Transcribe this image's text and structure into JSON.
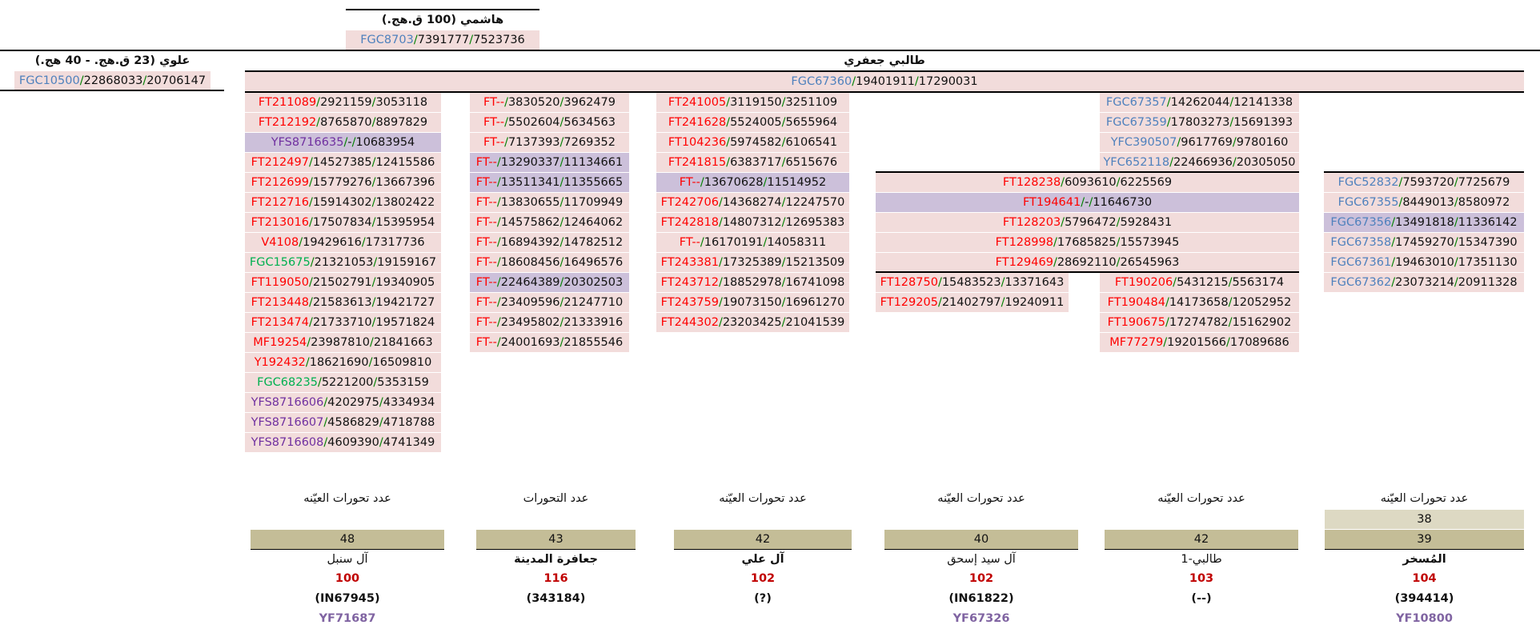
{
  "hashimi": {
    "title": "هاشمي (100 ق.هج.)",
    "code": {
      "p": "FGC8703",
      "a": "7391777",
      "b": "7523736",
      "c": "blue"
    }
  },
  "alawi": {
    "title": "علوي (23 ق.هج. - 40 هج.)",
    "code": {
      "p": "FGC10500",
      "a": "22868033",
      "b": "20706147",
      "c": "blue"
    }
  },
  "jafari": {
    "title": "طالبي جعفري",
    "code": {
      "p": "FGC67360",
      "a": "19401911",
      "b": "17290031",
      "c": "blue"
    }
  },
  "columns": [
    {
      "id": "col1",
      "rows": [
        {
          "p": "FT211089",
          "a": "2921159",
          "b": "3053118",
          "c": "red"
        },
        {
          "p": "FT212192",
          "a": "8765870",
          "b": "8897829",
          "c": "red"
        },
        {
          "p": "YFS8716635",
          "a": "-",
          "b": "10683954",
          "c": "purple",
          "hl": true
        },
        {
          "p": "FT212497",
          "a": "14527385",
          "b": "12415586",
          "c": "red"
        },
        {
          "p": "FT212699",
          "a": "15779276",
          "b": "13667396",
          "c": "red"
        },
        {
          "p": "FT212716",
          "a": "15914302",
          "b": "13802422",
          "c": "red"
        },
        {
          "p": "FT213016",
          "a": "17507834",
          "b": "15395954",
          "c": "red"
        },
        {
          "p": "V4108",
          "a": "19429616",
          "b": "17317736",
          "c": "red"
        },
        {
          "p": "FGC15675",
          "a": "21321053",
          "b": "19159167",
          "c": "green"
        },
        {
          "p": "FT119050",
          "a": "21502791",
          "b": "19340905",
          "c": "red"
        },
        {
          "p": "FT213448",
          "a": "21583613",
          "b": "19421727",
          "c": "red"
        },
        {
          "p": "FT213474",
          "a": "21733710",
          "b": "19571824",
          "c": "red"
        },
        {
          "p": "MF19254",
          "a": "23987810",
          "b": "21841663",
          "c": "red"
        },
        {
          "p": "Y192432",
          "a": "18621690",
          "b": "16509810",
          "c": "red"
        },
        {
          "p": "FGC68235",
          "a": "5221200",
          "b": "5353159",
          "c": "green"
        },
        {
          "p": "YFS8716606",
          "a": "4202975",
          "b": "4334934",
          "c": "purple"
        },
        {
          "p": "YFS8716607",
          "a": "4586829",
          "b": "4718788",
          "c": "purple"
        },
        {
          "p": "YFS8716608",
          "a": "4609390",
          "b": "4741349",
          "c": "purple"
        }
      ]
    },
    {
      "id": "col2",
      "rows": [
        {
          "p": "FT--",
          "a": "3830520",
          "b": "3962479",
          "c": "red"
        },
        {
          "p": "FT--",
          "a": "5502604",
          "b": "5634563",
          "c": "red"
        },
        {
          "p": "FT--",
          "a": "7137393",
          "b": "7269352",
          "c": "red"
        },
        {
          "p": "FT--",
          "a": "13290337",
          "b": "11134661",
          "c": "red",
          "hl": true
        },
        {
          "p": "FT--",
          "a": "13511341",
          "b": "11355665",
          "c": "red",
          "hl": true
        },
        {
          "p": "FT--",
          "a": "13830655",
          "b": "11709949",
          "c": "red"
        },
        {
          "p": "FT--",
          "a": "14575862",
          "b": "12464062",
          "c": "red"
        },
        {
          "p": "FT--",
          "a": "16894392",
          "b": "14782512",
          "c": "red"
        },
        {
          "p": "FT--",
          "a": "18608456",
          "b": "16496576",
          "c": "red"
        },
        {
          "p": "FT--",
          "a": "22464389",
          "b": "20302503",
          "c": "red",
          "hl": true
        },
        {
          "p": "FT--",
          "a": "23409596",
          "b": "21247710",
          "c": "red"
        },
        {
          "p": "FT--",
          "a": "23495802",
          "b": "21333916",
          "c": "red"
        },
        {
          "p": "FT--",
          "a": "24001693",
          "b": "21855546",
          "c": "red"
        }
      ]
    },
    {
      "id": "col3",
      "rows": [
        {
          "p": "FT241005",
          "a": "3119150",
          "b": "3251109",
          "c": "red"
        },
        {
          "p": "FT241628",
          "a": "5524005",
          "b": "5655964",
          "c": "red"
        },
        {
          "p": "FT104236",
          "a": "5974582",
          "b": "6106541",
          "c": "red"
        },
        {
          "p": "FT241815",
          "a": "6383717",
          "b": "6515676",
          "c": "red"
        },
        {
          "p": "FT--",
          "a": "13670628",
          "b": "11514952",
          "c": "red",
          "hl": true
        },
        {
          "p": "FT242706",
          "a": "14368274",
          "b": "12247570",
          "c": "red"
        },
        {
          "p": "FT242818",
          "a": "14807312",
          "b": "12695383",
          "c": "red"
        },
        {
          "p": "FT--",
          "a": "16170191",
          "b": "14058311",
          "c": "red"
        },
        {
          "p": "FT243381",
          "a": "17325389",
          "b": "15213509",
          "c": "red"
        },
        {
          "p": "FT243712",
          "a": "18852978",
          "b": "16741098",
          "c": "red"
        },
        {
          "p": "FT243759",
          "a": "19073150",
          "b": "16961270",
          "c": "red"
        },
        {
          "p": "FT244302",
          "a": "23203425",
          "b": "21041539",
          "c": "red"
        }
      ]
    },
    {
      "id": "col5top",
      "rows": [
        {
          "p": "FGC67357",
          "a": "14262044",
          "b": "12141338",
          "c": "blue"
        },
        {
          "p": "FGC67359",
          "a": "17803273",
          "b": "15691393",
          "c": "blue"
        },
        {
          "p": "YFC390507",
          "a": "9617769",
          "b": "9780160",
          "c": "blue"
        },
        {
          "p": "YFC652118",
          "a": "22466936",
          "b": "20305050",
          "c": "blue"
        }
      ]
    },
    {
      "id": "col45shared",
      "rows": [
        {
          "p": "FT128238",
          "a": "6093610",
          "b": "6225569",
          "c": "red"
        },
        {
          "p": "FT194641",
          "a": "-",
          "b": "11646730",
          "c": "red",
          "hl": true
        },
        {
          "p": "FT128203",
          "a": "5796472",
          "b": "5928431",
          "c": "red"
        },
        {
          "p": "FT128998",
          "a": "17685825",
          "b": "15573945",
          "c": "red"
        },
        {
          "p": "FT129469",
          "a": "28692110",
          "b": "26545963",
          "c": "red"
        }
      ]
    },
    {
      "id": "col4",
      "rows": [
        {
          "p": "FT128750",
          "a": "15483523",
          "b": "13371643",
          "c": "red"
        },
        {
          "p": "FT129205",
          "a": "21402797",
          "b": "19240911",
          "c": "red"
        }
      ]
    },
    {
      "id": "col5",
      "rows": [
        {
          "p": "FT190206",
          "a": "5431215",
          "b": "5563174",
          "c": "red"
        },
        {
          "p": "FT190484",
          "a": "14173658",
          "b": "12052952",
          "c": "red"
        },
        {
          "p": "FT190675",
          "a": "17274782",
          "b": "15162902",
          "c": "red"
        },
        {
          "p": "MF77279",
          "a": "19201566",
          "b": "17089686",
          "c": "red"
        }
      ]
    },
    {
      "id": "col6",
      "rows": [
        {
          "p": "FGC52832",
          "a": "7593720",
          "b": "7725679",
          "c": "blue"
        },
        {
          "p": "FGC67355",
          "a": "8449013",
          "b": "8580972",
          "c": "blue"
        },
        {
          "p": "FGC67356",
          "a": "13491818",
          "b": "11336142",
          "c": "blue",
          "hl": true
        },
        {
          "p": "FGC67358",
          "a": "17459270",
          "b": "15347390",
          "c": "blue"
        },
        {
          "p": "FGC67361",
          "a": "19463010",
          "b": "17351130",
          "c": "blue"
        },
        {
          "p": "FGC67362",
          "a": "23073214",
          "b": "20911328",
          "c": "blue"
        }
      ]
    }
  ],
  "summary": [
    {
      "heading": "عدد تحورات العيّنه",
      "extra": "",
      "count": "48",
      "name": "آل سنبل",
      "name_bold": false,
      "num": "100",
      "id": "(IN67945)",
      "yf": "YF71687"
    },
    {
      "heading": "عدد التحورات",
      "extra": "",
      "count": "43",
      "name": "جعافرة المدينة",
      "name_bold": true,
      "num": "116",
      "id": "(343184)",
      "yf": ""
    },
    {
      "heading": "عدد تحورات العيّنه",
      "extra": "",
      "count": "42",
      "name": "آل علي",
      "name_bold": true,
      "num": "102",
      "id": "(?)",
      "yf": ""
    },
    {
      "heading": "عدد تحورات العيّنه",
      "extra": "",
      "count": "40",
      "name": "آل سيد إسحق",
      "name_bold": false,
      "num": "102",
      "id": "(IN61822)",
      "yf": "YF67326"
    },
    {
      "heading": "عدد تحورات العيّنه",
      "extra": "",
      "count": "42",
      "name": "طالبي-1",
      "name_bold": false,
      "num": "103",
      "id": "(--)",
      "yf": ""
    },
    {
      "heading": "عدد تحورات العيّنه",
      "extra": "38",
      "count": "39",
      "name": "المُسخر",
      "name_bold": true,
      "num": "104",
      "id": "(394414)",
      "yf": "YF10800"
    }
  ],
  "colors": {
    "red": "#ff0000",
    "blue": "#4f81bd",
    "green": "#00b050",
    "purple": "#7030a0",
    "pink_bg": "#f2dcdb",
    "lavender_bg": "#ccc0da",
    "tan_bg": "#c4bd97"
  }
}
